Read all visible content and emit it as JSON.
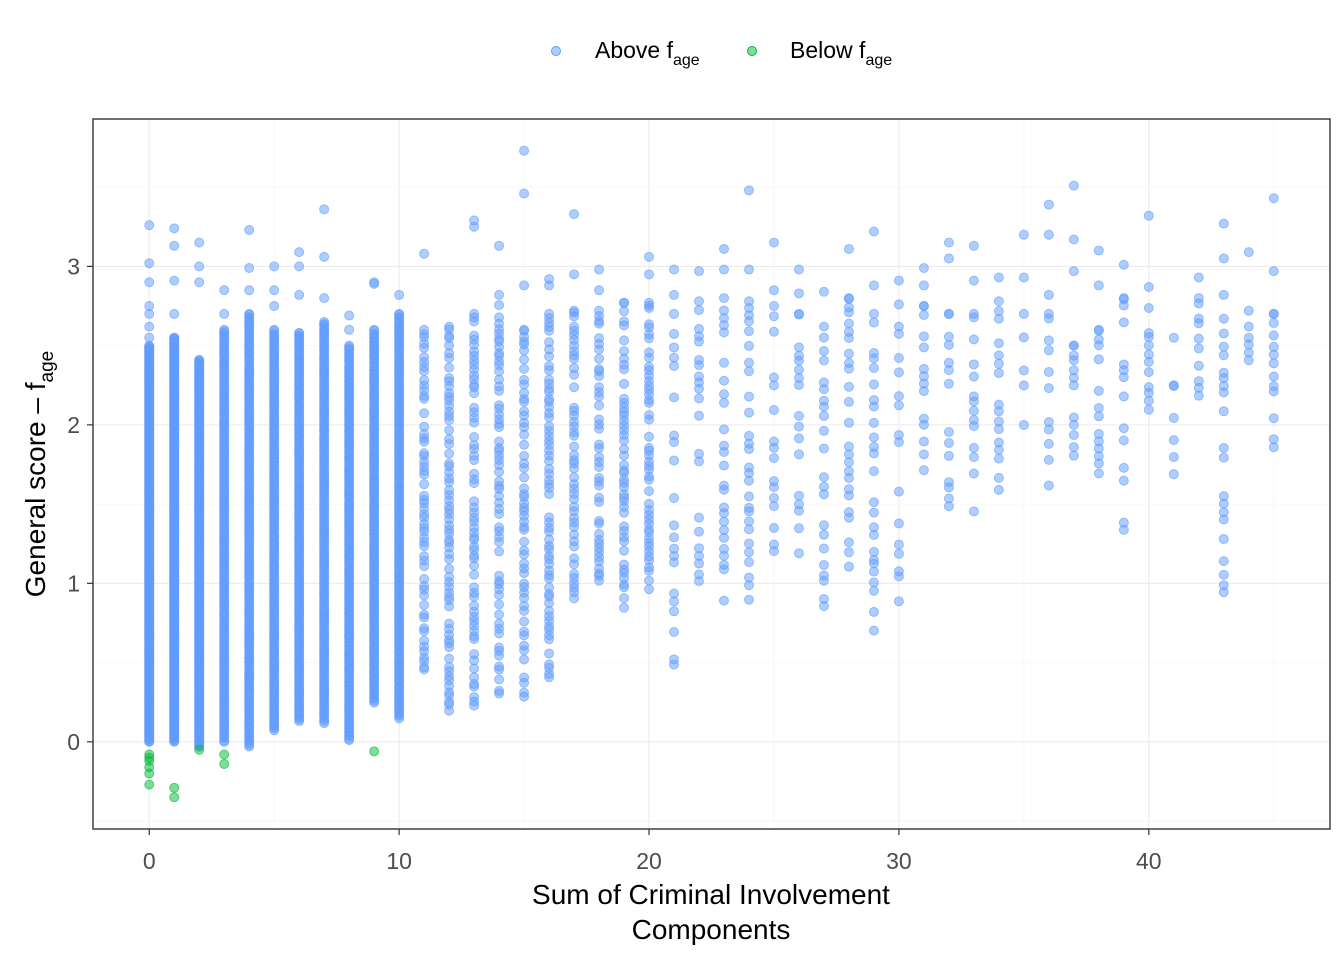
{
  "chart_data": {
    "type": "scatter",
    "title": "",
    "xlabel_lines": [
      "Sum of Criminal Involvement",
      "Components"
    ],
    "ylabel": {
      "main": "General score – f",
      "sub": "age"
    },
    "xlim": [
      -2.25,
      47.25
    ],
    "ylim": [
      -0.55,
      3.93
    ],
    "x_ticks": [
      0,
      10,
      20,
      30,
      40
    ],
    "y_ticks": [
      0,
      1,
      2,
      3
    ],
    "x_tick_labels": [
      "0",
      "10",
      "20",
      "30",
      "40"
    ],
    "y_tick_labels": [
      "0",
      "1",
      "2",
      "3"
    ],
    "grid": true,
    "legend_position": "top",
    "series": [
      {
        "name": "Above f",
        "name_sub": "age",
        "color": "#619cff",
        "columns": [
          {
            "x": 0,
            "min": 0.0,
            "max": 2.5,
            "extra": [
              2.55,
              2.62,
              2.7,
              2.75,
              2.9,
              3.02,
              3.26
            ]
          },
          {
            "x": 1,
            "min": 0.0,
            "max": 2.55,
            "extra": [
              2.7,
              2.91,
              3.13,
              3.24
            ]
          },
          {
            "x": 2,
            "min": -0.03,
            "max": 2.41,
            "extra": [
              2.9,
              3.0,
              3.15
            ]
          },
          {
            "x": 3,
            "min": 0.0,
            "max": 2.6,
            "extra": [
              2.7,
              2.85
            ]
          },
          {
            "x": 4,
            "min": -0.03,
            "max": 2.7,
            "extra": [
              2.85,
              2.99,
              3.23
            ]
          },
          {
            "x": 5,
            "min": 0.07,
            "max": 2.6,
            "extra": [
              2.75,
              2.85,
              3.0
            ]
          },
          {
            "x": 6,
            "min": 0.13,
            "max": 2.58,
            "extra": [
              2.82,
              3.0,
              3.09
            ]
          },
          {
            "x": 7,
            "min": 0.12,
            "max": 2.65,
            "extra": [
              2.8,
              3.06,
              3.36
            ]
          },
          {
            "x": 8,
            "min": 0.01,
            "max": 2.5,
            "extra": [
              2.6,
              2.69
            ]
          },
          {
            "x": 9,
            "min": 0.25,
            "max": 2.6,
            "extra": [
              2.89,
              2.9
            ]
          },
          {
            "x": 10,
            "min": 0.15,
            "max": 2.7,
            "extra": [
              2.82
            ]
          },
          {
            "x": 11,
            "min": 0.45,
            "max": 2.6,
            "extra": [
              3.08
            ]
          },
          {
            "x": 12,
            "min": 0.2,
            "max": 2.62,
            "extra": []
          },
          {
            "x": 13,
            "min": 0.22,
            "max": 2.7,
            "extra": [
              3.25,
              3.29
            ]
          },
          {
            "x": 14,
            "min": 0.3,
            "max": 2.82,
            "extra": [
              3.13
            ]
          },
          {
            "x": 15,
            "min": 0.28,
            "max": 2.6,
            "extra": [
              2.88,
              3.46,
              3.73
            ]
          },
          {
            "x": 16,
            "min": 0.4,
            "max": 2.7,
            "extra": [
              2.88,
              2.92
            ]
          },
          {
            "x": 17,
            "min": 0.91,
            "max": 2.72,
            "extra": [
              2.95,
              3.33
            ]
          },
          {
            "x": 18,
            "min": 1.01,
            "max": 2.72,
            "extra": [
              2.85,
              2.98
            ]
          },
          {
            "x": 19,
            "min": 0.85,
            "max": 2.77,
            "extra": []
          },
          {
            "x": 20,
            "min": 0.96,
            "max": 2.77,
            "extra": [
              2.95,
              3.06
            ]
          },
          {
            "x": 21,
            "min": 0.48,
            "max": 2.7,
            "extra": [
              2.82,
              2.98
            ]
          },
          {
            "x": 22,
            "min": 1.02,
            "max": 2.78,
            "extra": [
              2.97
            ]
          },
          {
            "x": 23,
            "min": 0.88,
            "max": 2.8,
            "extra": [
              2.98,
              3.11
            ]
          },
          {
            "x": 24,
            "min": 0.89,
            "max": 2.78,
            "extra": [
              2.98,
              3.48
            ]
          },
          {
            "x": 25,
            "min": 1.2,
            "max": 2.75,
            "extra": [
              2.85,
              3.15
            ]
          },
          {
            "x": 26,
            "min": 1.2,
            "max": 2.7,
            "extra": [
              2.83,
              2.98
            ]
          },
          {
            "x": 27,
            "min": 0.86,
            "max": 2.62,
            "extra": [
              2.84
            ]
          },
          {
            "x": 28,
            "min": 1.1,
            "max": 2.8,
            "extra": [
              3.11
            ]
          },
          {
            "x": 29,
            "min": 0.71,
            "max": 2.7,
            "extra": [
              2.88,
              3.22
            ]
          },
          {
            "x": 30,
            "min": 0.88,
            "max": 2.62,
            "extra": [
              2.76,
              2.91
            ]
          },
          {
            "x": 31,
            "min": 1.7,
            "max": 2.75,
            "extra": [
              2.88,
              2.99
            ]
          },
          {
            "x": 32,
            "min": 1.5,
            "max": 2.7,
            "extra": [
              3.05,
              3.15
            ]
          },
          {
            "x": 33,
            "min": 1.44,
            "max": 2.7,
            "extra": [
              2.91,
              3.13
            ]
          },
          {
            "x": 34,
            "min": 1.58,
            "max": 2.78,
            "extra": [
              2.93
            ]
          },
          {
            "x": 35,
            "min": 2.0,
            "max": 2.7,
            "extra": [
              2.93,
              3.2
            ]
          },
          {
            "x": 36,
            "min": 1.63,
            "max": 2.7,
            "extra": [
              2.82,
              3.2,
              3.39
            ]
          },
          {
            "x": 37,
            "min": 1.8,
            "max": 2.5,
            "extra": [
              2.97,
              3.17,
              3.51
            ]
          },
          {
            "x": 38,
            "min": 1.7,
            "max": 2.6,
            "extra": [
              2.88,
              3.1
            ]
          },
          {
            "x": 39,
            "min": 1.34,
            "max": 2.8,
            "extra": [
              3.01
            ]
          },
          {
            "x": 40,
            "min": 2.09,
            "max": 2.87,
            "extra": [
              3.32
            ]
          },
          {
            "x": 41,
            "min": 1.7,
            "max": 2.25,
            "extra": [
              2.55
            ]
          },
          {
            "x": 42,
            "min": 2.18,
            "max": 2.8,
            "extra": [
              2.93
            ]
          },
          {
            "x": 43,
            "min": 0.94,
            "max": 2.67,
            "extra": [
              2.82,
              3.05,
              3.27
            ]
          },
          {
            "x": 44,
            "min": 2.4,
            "max": 2.62,
            "extra": [
              2.72,
              3.09
            ]
          },
          {
            "x": 45,
            "min": 1.85,
            "max": 2.7,
            "extra": [
              2.97,
              3.43
            ]
          }
        ]
      },
      {
        "name": "Below f",
        "name_sub": "age",
        "color": "#00ba38",
        "points": [
          {
            "x": 0,
            "y": -0.08
          },
          {
            "x": 0,
            "y": -0.1
          },
          {
            "x": 0,
            "y": -0.12
          },
          {
            "x": 0,
            "y": -0.16
          },
          {
            "x": 0,
            "y": -0.2
          },
          {
            "x": 0,
            "y": -0.27
          },
          {
            "x": 1,
            "y": -0.29
          },
          {
            "x": 1,
            "y": -0.35
          },
          {
            "x": 2,
            "y": -0.05
          },
          {
            "x": 3,
            "y": -0.08
          },
          {
            "x": 3,
            "y": -0.14
          },
          {
            "x": 9,
            "y": -0.06
          }
        ]
      }
    ]
  }
}
